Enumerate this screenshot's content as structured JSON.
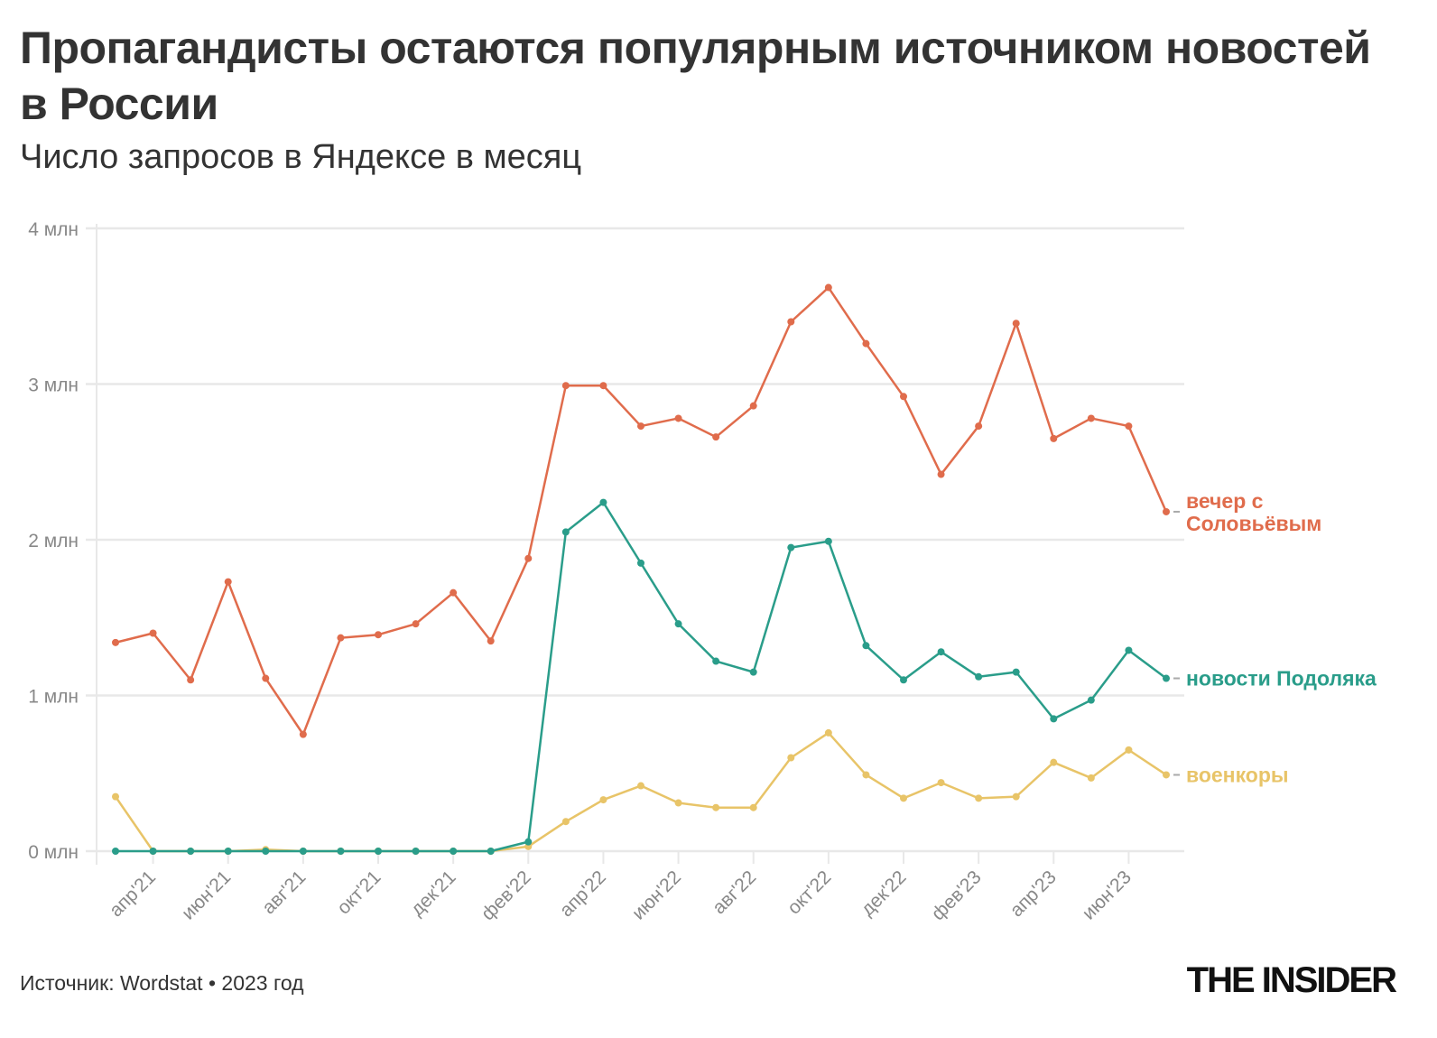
{
  "title": "Пропагандисты остаются популярным источником новостей в России",
  "subtitle": "Число запросов в Яндексе в месяц",
  "source": "Источник: Wordstat • 2023 год",
  "logo": "THE INSIDER",
  "chart_data": {
    "type": "line",
    "title": "Пропагандисты остаются популярным источником новостей в России",
    "subtitle": "Число запросов в Яндексе в месяц",
    "xlabel": "",
    "ylabel": "",
    "x": [
      "мар'21",
      "апр'21",
      "май'21",
      "июн'21",
      "июл'21",
      "авг'21",
      "сен'21",
      "окт'21",
      "ноя'21",
      "дек'21",
      "янв'22",
      "фев'22",
      "мар'22",
      "апр'22",
      "май'22",
      "июн'22",
      "июл'22",
      "авг'22",
      "сен'22",
      "окт'22",
      "ноя'22",
      "дек'22",
      "янв'23",
      "фев'23",
      "мар'23",
      "апр'23",
      "май'23",
      "июн'23",
      "июл'23"
    ],
    "x_tick_labels": [
      "апр'21",
      "июн'21",
      "авг'21",
      "окт'21",
      "дек'21",
      "фев'22",
      "апр'22",
      "июн'22",
      "авг'22",
      "окт'22",
      "дек'22",
      "фев'23",
      "апр'23",
      "июн'23"
    ],
    "y_tick_labels": [
      "0 млн",
      "1 млн",
      "2 млн",
      "3 млн",
      "4 млн"
    ],
    "y_ticks": [
      0,
      1,
      2,
      3,
      4
    ],
    "ylim": [
      0,
      4
    ],
    "y_unit": "млн",
    "grid": true,
    "legend": "direct labels at line ends (right)",
    "series": [
      {
        "name": "вечер с Соловьёвым",
        "color": "#e06c4c",
        "values": [
          1.34,
          1.4,
          1.1,
          1.73,
          1.11,
          0.75,
          1.37,
          1.39,
          1.46,
          1.66,
          1.35,
          1.88,
          2.99,
          2.99,
          2.73,
          2.78,
          2.66,
          2.86,
          3.4,
          3.62,
          3.26,
          2.92,
          2.42,
          2.73,
          3.39,
          2.65,
          2.78,
          2.73,
          2.18
        ]
      },
      {
        "name": "новости Подоляка",
        "color": "#2a9d8a",
        "values": [
          0,
          0,
          0,
          0,
          0,
          0,
          0,
          0,
          0,
          0,
          0,
          0.06,
          2.05,
          2.24,
          1.85,
          1.46,
          1.22,
          1.15,
          1.95,
          1.99,
          1.32,
          1.1,
          1.28,
          1.12,
          1.15,
          0.85,
          0.97,
          1.29,
          1.11
        ]
      },
      {
        "name": "военкоры",
        "color": "#e8c468",
        "values": [
          0.35,
          0,
          0,
          0,
          0.01,
          0,
          0,
          0,
          0,
          0,
          0,
          0.03,
          0.19,
          0.33,
          0.42,
          0.31,
          0.28,
          0.28,
          0.6,
          0.76,
          0.49,
          0.34,
          0.44,
          0.34,
          0.35,
          0.57,
          0.47,
          0.65,
          0.49
        ]
      }
    ]
  }
}
